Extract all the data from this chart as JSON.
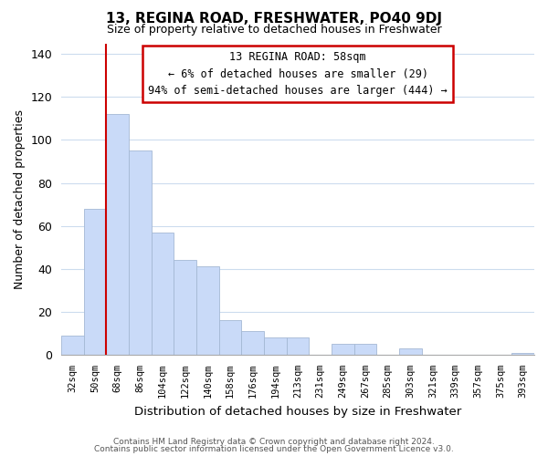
{
  "title": "13, REGINA ROAD, FRESHWATER, PO40 9DJ",
  "subtitle": "Size of property relative to detached houses in Freshwater",
  "xlabel": "Distribution of detached houses by size in Freshwater",
  "ylabel": "Number of detached properties",
  "categories": [
    "32sqm",
    "50sqm",
    "68sqm",
    "86sqm",
    "104sqm",
    "122sqm",
    "140sqm",
    "158sqm",
    "176sqm",
    "194sqm",
    "213sqm",
    "231sqm",
    "249sqm",
    "267sqm",
    "285sqm",
    "303sqm",
    "321sqm",
    "339sqm",
    "357sqm",
    "375sqm",
    "393sqm"
  ],
  "values": [
    9,
    68,
    112,
    95,
    57,
    44,
    41,
    16,
    11,
    8,
    8,
    0,
    5,
    5,
    0,
    3,
    0,
    0,
    0,
    0,
    1
  ],
  "bar_color": "#c9daf8",
  "bar_edge_color": "#a4b8d4",
  "vline_x": 1.5,
  "vline_color": "#cc0000",
  "annotation_text": "13 REGINA ROAD: 58sqm\n← 6% of detached houses are smaller (29)\n94% of semi-detached houses are larger (444) →",
  "annotation_box_edge": "#cc0000",
  "ylim": [
    0,
    145
  ],
  "yticks": [
    0,
    20,
    40,
    60,
    80,
    100,
    120,
    140
  ],
  "footer1": "Contains HM Land Registry data © Crown copyright and database right 2024.",
  "footer2": "Contains public sector information licensed under the Open Government Licence v3.0.",
  "background_color": "#ffffff",
  "grid_color": "#ccdcee"
}
